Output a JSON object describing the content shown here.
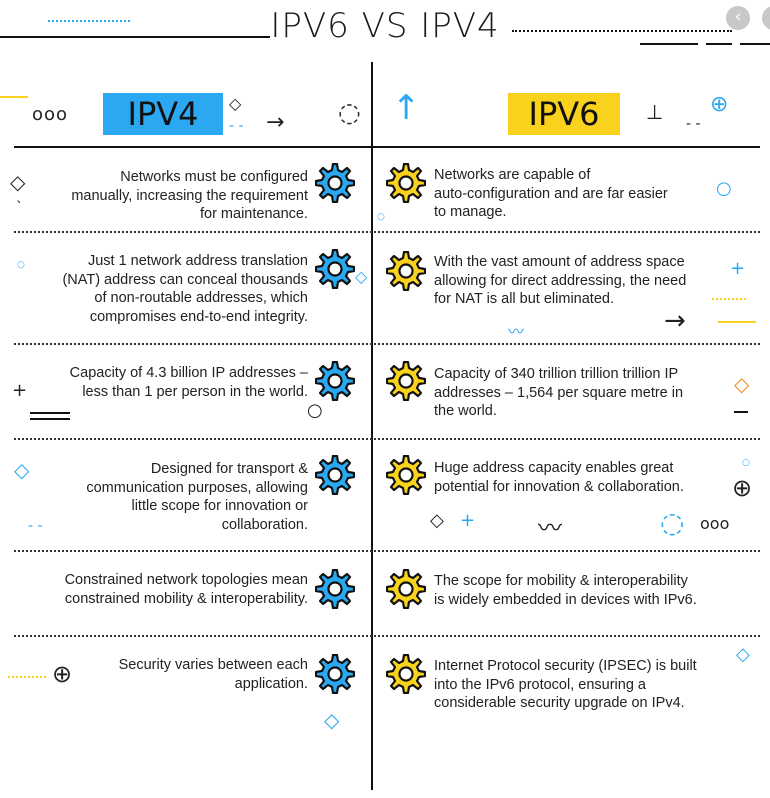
{
  "title": "IPV6 VS IPV4",
  "tags": {
    "left": "IPV4",
    "right": "IPV6"
  },
  "colors": {
    "ipv4": "#2aa8f2",
    "ipv6": "#f9d21e",
    "gear_ipv4": "#2aa8f2",
    "gear_ipv6": "#f9d21e"
  },
  "rows": [
    {
      "ipv4": [
        "Networks must be configured",
        "manually, increasing the requirement",
        "for maintenance."
      ],
      "ipv6": [
        "Networks are capable of",
        "auto-configuration and are far easier",
        "to manage."
      ]
    },
    {
      "ipv4": [
        "Just 1 network address translation",
        "(NAT) address can conceal thousands",
        "of non-routable addresses, which",
        "compromises end-to-end integrity."
      ],
      "ipv6": [
        "With the vast amount of address space",
        "allowing for direct addressing, the need",
        "for NAT is all but eliminated."
      ]
    },
    {
      "ipv4": [
        "Capacity of 4.3 billion IP addresses –",
        "less than 1 per person in the world."
      ],
      "ipv6": [
        "Capacity of 340 trillion trillion trillion IP",
        "addresses – 1,564 per square metre in",
        "the world."
      ]
    },
    {
      "ipv4": [
        "Designed for transport &",
        "communication purposes, allowing",
        "little scope for innovation or",
        "collaboration."
      ],
      "ipv6": [
        "Huge address capacity enables great",
        "potential for innovation & collaboration."
      ]
    },
    {
      "ipv4": [
        "Constrained network topologies mean",
        "constrained mobility & interoperability."
      ],
      "ipv6": [
        "The scope for mobility & interoperability",
        "is widely embedded in devices with IPv6."
      ]
    },
    {
      "ipv4": [
        "Security varies between each",
        "application."
      ],
      "ipv6": [
        "Internet Protocol security (IPSEC) is built",
        "into the IPv6 protocol, ensuring a",
        "considerable security upgrade on IPv4."
      ]
    }
  ]
}
